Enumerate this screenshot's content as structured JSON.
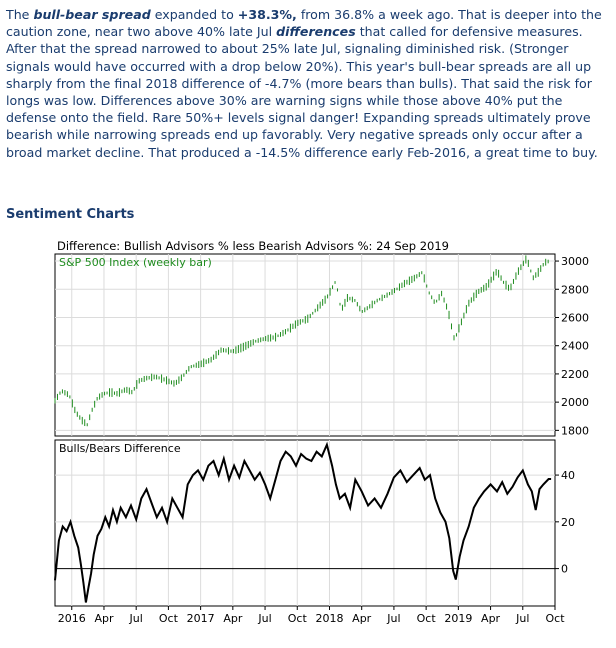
{
  "article": {
    "p1_a": "The ",
    "p1_term": "bull-bear spread",
    "p1_b": " expanded to ",
    "p1_value": "+38.3%,",
    "p1_c": " from 36.8% a week ago. That is deeper into the caution zone, near two above 40% late Jul ",
    "p1_term2": "differences",
    "p1_d": " that called for defensive measures. After that the spread narrowed to about 25% late Jul, signaling diminished risk. (Stronger signals would have occurred with a drop below 20%). This year's bull-bear spreads are all up sharply from the final 2018 difference of -4.7% (more bears than bulls). That said the risk for longs was low. Differences above 30% are warning signs while those above 40% put the defense onto the field. Rare 50%+ levels signal danger! Expanding spreads ultimately prove bearish while narrowing spreads end up favorably. Very negative spreads only occur after a broad market decline. That produced a -14.5% difference early Feb-2016, a great time to buy."
  },
  "section_title": "Sentiment Charts",
  "colors": {
    "text": "#1a3c6e",
    "price": "#1f8c1f",
    "spread": "#000000",
    "grid": "#dcdcdc"
  },
  "chart_data": [
    {
      "type": "bar",
      "title": "Difference: Bullish Advisors % less Bearish Advisors %: 24 Sep 2019",
      "legend": "S&P 500 Index (weekly bar)",
      "yticks": [
        1800,
        2000,
        2200,
        2400,
        2600,
        2800,
        3000
      ],
      "ylim": [
        1760,
        3050
      ],
      "xlim": [
        2015.87,
        2019.75
      ],
      "xticks": [
        {
          "x": 2016.0,
          "label": "2016"
        },
        {
          "x": 2016.25,
          "label": "Apr"
        },
        {
          "x": 2016.5,
          "label": "Jul"
        },
        {
          "x": 2016.75,
          "label": "Oct"
        },
        {
          "x": 2017.0,
          "label": "2017"
        },
        {
          "x": 2017.25,
          "label": "Apr"
        },
        {
          "x": 2017.5,
          "label": "Jul"
        },
        {
          "x": 2017.75,
          "label": "Oct"
        },
        {
          "x": 2018.0,
          "label": "2018"
        },
        {
          "x": 2018.25,
          "label": "Apr"
        },
        {
          "x": 2018.5,
          "label": "Jul"
        },
        {
          "x": 2018.75,
          "label": "Oct"
        },
        {
          "x": 2019.0,
          "label": "2019"
        },
        {
          "x": 2019.25,
          "label": "Apr"
        },
        {
          "x": 2019.5,
          "label": "Jul"
        },
        {
          "x": 2019.75,
          "label": "Oct"
        }
      ],
      "series": [
        {
          "points": [
            [
              2015.87,
              2010
            ],
            [
              2015.92,
              2080
            ],
            [
              2015.98,
              2050
            ],
            [
              2016.03,
              1930
            ],
            [
              2016.08,
              1870
            ],
            [
              2016.12,
              1840
            ],
            [
              2016.16,
              1950
            ],
            [
              2016.2,
              2030
            ],
            [
              2016.25,
              2060
            ],
            [
              2016.3,
              2070
            ],
            [
              2016.35,
              2060
            ],
            [
              2016.42,
              2090
            ],
            [
              2016.47,
              2070
            ],
            [
              2016.52,
              2150
            ],
            [
              2016.58,
              2170
            ],
            [
              2016.65,
              2180
            ],
            [
              2016.72,
              2160
            ],
            [
              2016.8,
              2130
            ],
            [
              2016.86,
              2180
            ],
            [
              2016.92,
              2250
            ],
            [
              2017.0,
              2270
            ],
            [
              2017.08,
              2300
            ],
            [
              2017.16,
              2370
            ],
            [
              2017.25,
              2360
            ],
            [
              2017.33,
              2390
            ],
            [
              2017.42,
              2430
            ],
            [
              2017.5,
              2450
            ],
            [
              2017.58,
              2460
            ],
            [
              2017.66,
              2500
            ],
            [
              2017.75,
              2560
            ],
            [
              2017.83,
              2590
            ],
            [
              2017.92,
              2680
            ],
            [
              2017.98,
              2740
            ],
            [
              2018.05,
              2860
            ],
            [
              2018.09,
              2650
            ],
            [
              2018.14,
              2740
            ],
            [
              2018.2,
              2720
            ],
            [
              2018.25,
              2640
            ],
            [
              2018.3,
              2670
            ],
            [
              2018.37,
              2720
            ],
            [
              2018.45,
              2760
            ],
            [
              2018.52,
              2800
            ],
            [
              2018.58,
              2840
            ],
            [
              2018.66,
              2880
            ],
            [
              2018.72,
              2920
            ],
            [
              2018.77,
              2780
            ],
            [
              2018.82,
              2700
            ],
            [
              2018.87,
              2770
            ],
            [
              2018.92,
              2650
            ],
            [
              2018.97,
              2440
            ],
            [
              2019.02,
              2560
            ],
            [
              2019.08,
              2700
            ],
            [
              2019.15,
              2780
            ],
            [
              2019.22,
              2820
            ],
            [
              2019.3,
              2930
            ],
            [
              2019.35,
              2850
            ],
            [
              2019.4,
              2800
            ],
            [
              2019.46,
              2920
            ],
            [
              2019.53,
              3020
            ],
            [
              2019.58,
              2880
            ],
            [
              2019.62,
              2920
            ],
            [
              2019.67,
              2990
            ],
            [
              2019.71,
              3000
            ]
          ]
        }
      ]
    },
    {
      "type": "line",
      "legend": "Bulls/Bears Difference",
      "yticks": [
        0,
        20,
        40
      ],
      "ylim": [
        -16,
        55
      ],
      "series": [
        {
          "points": [
            [
              2015.87,
              -5
            ],
            [
              2015.9,
              12
            ],
            [
              2015.93,
              18
            ],
            [
              2015.96,
              16
            ],
            [
              2015.99,
              20
            ],
            [
              2016.02,
              14
            ],
            [
              2016.05,
              9
            ],
            [
              2016.07,
              2
            ],
            [
              2016.09,
              -6
            ],
            [
              2016.11,
              -14.5
            ],
            [
              2016.13,
              -8
            ],
            [
              2016.15,
              -2
            ],
            [
              2016.17,
              6
            ],
            [
              2016.2,
              14
            ],
            [
              2016.23,
              17
            ],
            [
              2016.26,
              22
            ],
            [
              2016.29,
              18
            ],
            [
              2016.32,
              25
            ],
            [
              2016.35,
              20
            ],
            [
              2016.38,
              26
            ],
            [
              2016.42,
              22
            ],
            [
              2016.46,
              27
            ],
            [
              2016.5,
              21
            ],
            [
              2016.54,
              30
            ],
            [
              2016.58,
              34
            ],
            [
              2016.62,
              28
            ],
            [
              2016.66,
              22
            ],
            [
              2016.7,
              26
            ],
            [
              2016.74,
              20
            ],
            [
              2016.78,
              30
            ],
            [
              2016.82,
              26
            ],
            [
              2016.86,
              22
            ],
            [
              2016.9,
              36
            ],
            [
              2016.94,
              40
            ],
            [
              2016.98,
              42
            ],
            [
              2017.02,
              38
            ],
            [
              2017.06,
              44
            ],
            [
              2017.1,
              46
            ],
            [
              2017.14,
              40
            ],
            [
              2017.18,
              47
            ],
            [
              2017.22,
              38
            ],
            [
              2017.26,
              44
            ],
            [
              2017.3,
              39
            ],
            [
              2017.34,
              46
            ],
            [
              2017.38,
              42
            ],
            [
              2017.42,
              38
            ],
            [
              2017.46,
              41
            ],
            [
              2017.5,
              36
            ],
            [
              2017.54,
              30
            ],
            [
              2017.58,
              38
            ],
            [
              2017.62,
              46
            ],
            [
              2017.66,
              50
            ],
            [
              2017.7,
              48
            ],
            [
              2017.74,
              44
            ],
            [
              2017.78,
              49
            ],
            [
              2017.82,
              47
            ],
            [
              2017.86,
              46
            ],
            [
              2017.9,
              50
            ],
            [
              2017.94,
              48
            ],
            [
              2017.98,
              53
            ],
            [
              2018.02,
              44
            ],
            [
              2018.05,
              36
            ],
            [
              2018.08,
              30
            ],
            [
              2018.12,
              32
            ],
            [
              2018.16,
              26
            ],
            [
              2018.2,
              38
            ],
            [
              2018.25,
              33
            ],
            [
              2018.3,
              27
            ],
            [
              2018.35,
              30
            ],
            [
              2018.4,
              26
            ],
            [
              2018.45,
              32
            ],
            [
              2018.5,
              39
            ],
            [
              2018.55,
              42
            ],
            [
              2018.6,
              37
            ],
            [
              2018.65,
              40
            ],
            [
              2018.7,
              43
            ],
            [
              2018.74,
              38
            ],
            [
              2018.78,
              40
            ],
            [
              2018.82,
              30
            ],
            [
              2018.86,
              24
            ],
            [
              2018.9,
              20
            ],
            [
              2018.93,
              13
            ],
            [
              2018.96,
              -1
            ],
            [
              2018.98,
              -4.7
            ],
            [
              2019.01,
              5
            ],
            [
              2019.04,
              12
            ],
            [
              2019.08,
              18
            ],
            [
              2019.12,
              26
            ],
            [
              2019.16,
              30
            ],
            [
              2019.2,
              33
            ],
            [
              2019.25,
              36
            ],
            [
              2019.3,
              33
            ],
            [
              2019.34,
              37
            ],
            [
              2019.38,
              32
            ],
            [
              2019.42,
              35
            ],
            [
              2019.46,
              39
            ],
            [
              2019.5,
              42
            ],
            [
              2019.54,
              36
            ],
            [
              2019.57,
              33
            ],
            [
              2019.6,
              25
            ],
            [
              2019.63,
              34
            ],
            [
              2019.66,
              36
            ],
            [
              2019.7,
              38.3
            ],
            [
              2019.72,
              38.3
            ]
          ]
        }
      ]
    }
  ]
}
